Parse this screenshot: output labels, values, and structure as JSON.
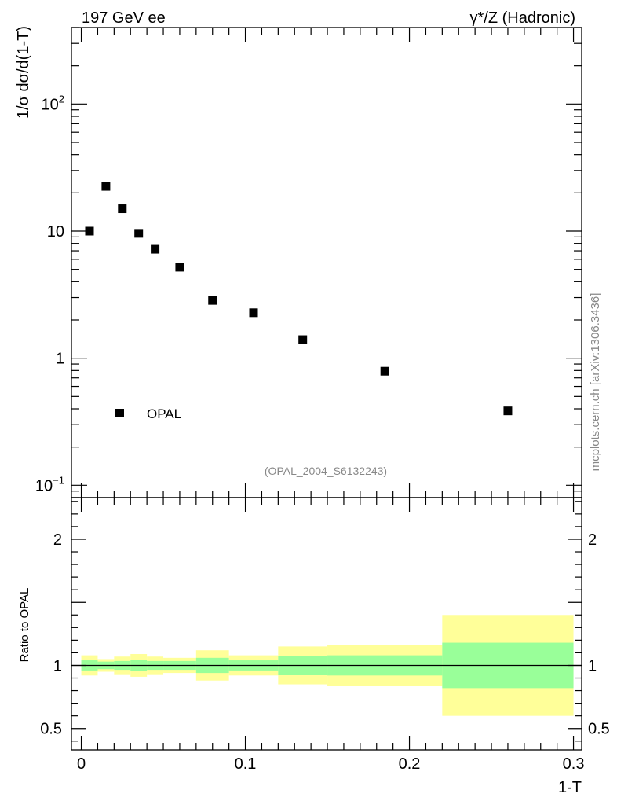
{
  "header": {
    "left": "197 GeV ee",
    "right": "γ*/Z (Hadronic)"
  },
  "side_label": "mcplots.cern.ch [arXiv:1306.3436]",
  "analysis_id": "(OPAL_2004_S6132243)",
  "chart_data": [
    {
      "type": "scatter",
      "ylabel": "1/σ dσ/d(1-T)",
      "yscale": "log",
      "ylim": [
        0.08,
        400
      ],
      "xlim": [
        -0.006,
        0.305
      ],
      "yticks": [
        {
          "value": 0.1,
          "label": "10",
          "sup": "−1"
        },
        {
          "value": 1,
          "label": "1",
          "sup": ""
        },
        {
          "value": 10,
          "label": "10",
          "sup": ""
        },
        {
          "value": 100,
          "label": "10",
          "sup": "2"
        }
      ],
      "legend": {
        "position": "bottom-left",
        "label": "OPAL"
      },
      "series": [
        {
          "name": "OPAL",
          "x": [
            0.005,
            0.015,
            0.025,
            0.035,
            0.045,
            0.06,
            0.08,
            0.105,
            0.135,
            0.185,
            0.26
          ],
          "y": [
            10.0,
            22.5,
            15.0,
            9.6,
            7.2,
            5.2,
            2.85,
            2.28,
            1.4,
            0.79,
            0.385
          ]
        }
      ]
    },
    {
      "type": "area",
      "ylabel": "Ratio to OPAL",
      "xlabel": "1-T",
      "xlim": [
        -0.006,
        0.305
      ],
      "ylim": [
        0.33,
        2.33
      ],
      "yticks": [
        0.5,
        1,
        2
      ],
      "ytick_labels": [
        "0.5",
        "1",
        "2"
      ],
      "xticks": [
        0,
        0.1,
        0.2,
        0.3
      ],
      "xtick_labels": [
        "0",
        "0.1",
        "0.2",
        "0.3"
      ],
      "reference_line": 1,
      "bands": {
        "edges": [
          0,
          0.01,
          0.02,
          0.03,
          0.04,
          0.05,
          0.07,
          0.09,
          0.12,
          0.15,
          0.22,
          0.3
        ],
        "outer_low": [
          0.92,
          0.95,
          0.93,
          0.91,
          0.93,
          0.94,
          0.88,
          0.92,
          0.85,
          0.84,
          0.6
        ],
        "outer_high": [
          1.08,
          1.05,
          1.07,
          1.09,
          1.07,
          1.06,
          1.12,
          1.08,
          1.15,
          1.16,
          1.4
        ],
        "inner_low": [
          0.96,
          0.97,
          0.965,
          0.955,
          0.965,
          0.965,
          0.94,
          0.96,
          0.925,
          0.92,
          0.82
        ],
        "inner_high": [
          1.04,
          1.03,
          1.035,
          1.045,
          1.035,
          1.035,
          1.06,
          1.04,
          1.075,
          1.08,
          1.18
        ],
        "outer_color": "#ffff99",
        "inner_color": "#99ff99"
      }
    }
  ]
}
